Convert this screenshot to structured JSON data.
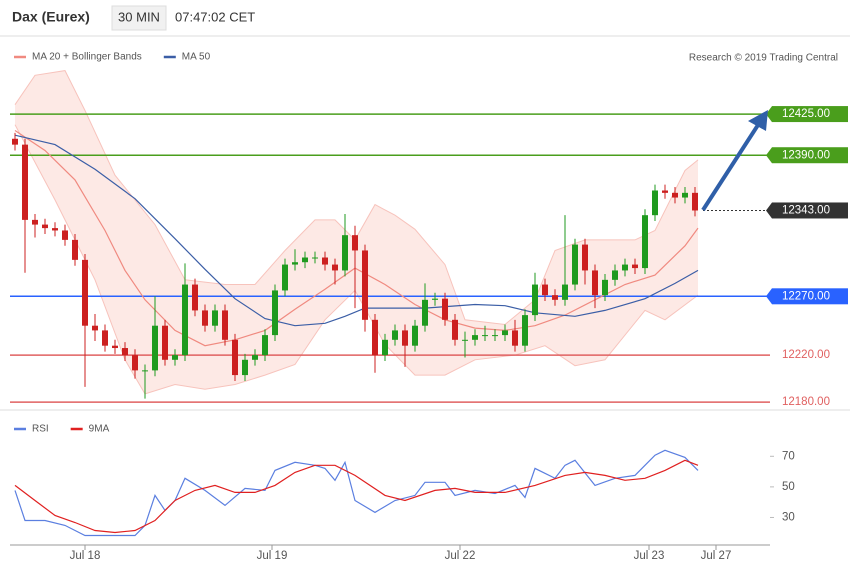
{
  "header": {
    "instrument": "Dax (Eurex)",
    "timeframe": "30 MIN",
    "time": "07:47:02 CET",
    "credit": "Research © 2019 Trading Central"
  },
  "chart_data": [
    {
      "type": "candlestick",
      "xlim": [
        -0.5,
        75.5
      ],
      "ylim": [
        12175,
        12488
      ],
      "up_color": "#1f9a1f",
      "down_color": "#cc2020",
      "open": [
        12404,
        12399,
        12335,
        12331,
        12328,
        12326,
        12318,
        12301,
        12245,
        12241,
        12228,
        12226,
        12220,
        12207,
        12207,
        12245,
        12216,
        12220,
        12280,
        12258,
        12245,
        12258,
        12233,
        12203,
        12216,
        12220,
        12237,
        12275,
        12297,
        12299,
        12303,
        12303,
        12297,
        12292,
        12322,
        12309,
        12250,
        12220,
        12233,
        12241,
        12228,
        12245,
        12267,
        12268,
        12250,
        12233,
        12233,
        12237,
        12237,
        12237,
        12241,
        12228,
        12254,
        12280,
        12271,
        12267,
        12280,
        12314,
        12292,
        12271,
        12284,
        12292,
        12297,
        12294,
        12339,
        12360,
        12358,
        12354,
        12358
      ],
      "high": [
        12409,
        12404,
        12340,
        12336,
        12333,
        12331,
        12323,
        12306,
        12255,
        12246,
        12233,
        12231,
        12225,
        12212,
        12270,
        12250,
        12225,
        12298,
        12285,
        12263,
        12263,
        12263,
        12238,
        12221,
        12225,
        12242,
        12280,
        12302,
        12310,
        12308,
        12308,
        12308,
        12302,
        12340,
        12330,
        12314,
        12255,
        12238,
        12246,
        12246,
        12250,
        12281,
        12273,
        12273,
        12255,
        12240,
        12242,
        12245,
        12242,
        12246,
        12250,
        12259,
        12290,
        12285,
        12276,
        12339,
        12319,
        12319,
        12297,
        12289,
        12297,
        12302,
        12302,
        12344,
        12365,
        12365,
        12363,
        12363,
        12363
      ],
      "low": [
        12394,
        12290,
        12320,
        12323,
        12321,
        12313,
        12296,
        12193,
        12232,
        12223,
        12221,
        12215,
        12200,
        12183,
        12202,
        12211,
        12211,
        12215,
        12253,
        12240,
        12240,
        12228,
        12198,
        12198,
        12211,
        12215,
        12232,
        12270,
        12292,
        12294,
        12298,
        12292,
        12280,
        12287,
        12260,
        12240,
        12205,
        12215,
        12228,
        12210,
        12223,
        12240,
        12262,
        12245,
        12228,
        12218,
        12228,
        12232,
        12232,
        12232,
        12223,
        12223,
        12249,
        12266,
        12262,
        12262,
        12275,
        12280,
        12260,
        12266,
        12279,
        12287,
        12289,
        12289,
        12334,
        12353,
        12349,
        12349,
        12338
      ],
      "close": [
        12399,
        12335,
        12331,
        12328,
        12326,
        12318,
        12301,
        12245,
        12241,
        12228,
        12226,
        12220,
        12207,
        12207,
        12245,
        12216,
        12220,
        12280,
        12258,
        12245,
        12258,
        12233,
        12203,
        12216,
        12220,
        12237,
        12275,
        12297,
        12299,
        12303,
        12303,
        12297,
        12292,
        12322,
        12309,
        12250,
        12220,
        12233,
        12241,
        12228,
        12245,
        12267,
        12268,
        12250,
        12233,
        12233,
        12237,
        12237,
        12237,
        12241,
        12228,
        12254,
        12280,
        12271,
        12267,
        12280,
        12314,
        12292,
        12271,
        12284,
        12292,
        12297,
        12294,
        12339,
        12360,
        12358,
        12354,
        12358,
        12343
      ],
      "bands": {
        "color": "#fde3df",
        "upper": {
          "x": [
            0,
            2,
            5,
            7,
            10,
            14,
            17,
            21,
            24,
            27,
            30,
            32,
            34,
            36,
            38,
            40,
            43,
            45,
            49,
            52,
            54,
            57,
            62,
            64,
            67,
            68.3
          ],
          "values": [
            12433,
            12458,
            12462,
            12428,
            12373,
            12331,
            12284,
            12280,
            12280,
            12309,
            12335,
            12335,
            12318,
            12348,
            12339,
            12327,
            12297,
            12250,
            12246,
            12267,
            12309,
            12318,
            12318,
            12326,
            12377,
            12386
          ]
        },
        "lower": {
          "x": [
            0,
            4,
            8,
            11,
            13,
            16,
            19,
            22,
            25,
            28,
            31,
            34,
            37,
            40,
            43,
            46,
            50,
            53,
            56,
            59,
            63,
            65,
            68.3
          ],
          "values": [
            12416,
            12352,
            12284,
            12216,
            12187,
            12195,
            12191,
            12195,
            12203,
            12212,
            12250,
            12275,
            12229,
            12203,
            12203,
            12216,
            12220,
            12228,
            12211,
            12216,
            12258,
            12250,
            12271
          ]
        }
      },
      "series": [
        {
          "name": "MA 20 + Bollinger Bands",
          "color": "#f08a80",
          "x": [
            0,
            3,
            6,
            9,
            11,
            13,
            16,
            19,
            22,
            25,
            28,
            31,
            34,
            37,
            40,
            43,
            46,
            49,
            52,
            55,
            58,
            61,
            64,
            67,
            68.3
          ],
          "values": [
            12411,
            12394,
            12369,
            12326,
            12292,
            12267,
            12241,
            12228,
            12233,
            12241,
            12259,
            12276,
            12294,
            12280,
            12263,
            12250,
            12243,
            12241,
            12245,
            12254,
            12267,
            12280,
            12288,
            12313,
            12328
          ]
        },
        {
          "name": "MA 50",
          "color": "#3b5ea6",
          "x": [
            0,
            4,
            8,
            12,
            16,
            19,
            22,
            25,
            28,
            31,
            33,
            35,
            41,
            46,
            49,
            52,
            56,
            59,
            63,
            66,
            68.3
          ],
          "values": [
            12407,
            12399,
            12378,
            12353,
            12319,
            12293,
            12268,
            12251,
            12245,
            12247,
            12253,
            12260,
            12260,
            12263,
            12262,
            12256,
            12253,
            12258,
            12268,
            12281,
            12292
          ]
        }
      ],
      "levels": [
        {
          "value": 12425,
          "label": "12425.00",
          "color": "#4a9e1c",
          "line": "solid",
          "tag": "box"
        },
        {
          "value": 12390,
          "label": "12390.00",
          "color": "#4a9e1c",
          "line": "solid",
          "tag": "box"
        },
        {
          "value": 12343,
          "label": "12343.00",
          "color": "#333333",
          "line": "dotted",
          "tag": "box"
        },
        {
          "value": 12270,
          "label": "12270.00",
          "color": "#2962ff",
          "line": "solid",
          "tag": "box"
        },
        {
          "value": 12220,
          "label": "12220.00",
          "color": "#e06060",
          "line": "solid",
          "tag": "text"
        },
        {
          "value": 12180,
          "label": "12180.00",
          "color": "#e06060",
          "line": "solid",
          "tag": "text"
        }
      ]
    },
    {
      "type": "line",
      "xlim": [
        -0.5,
        75.5
      ],
      "ylim": [
        12,
        97
      ],
      "yticks": [
        30,
        50,
        70
      ],
      "xticks": [
        {
          "value": 7,
          "label": "Jul 18"
        },
        {
          "value": 25.7,
          "label": "Jul 19"
        },
        {
          "value": 44.5,
          "label": "Jul 22"
        },
        {
          "value": 63.4,
          "label": "Jul 23"
        },
        {
          "value": 70.1,
          "label": "Jul 27"
        }
      ],
      "series": [
        {
          "name": "RSI",
          "color": "#5b7fe0",
          "x": [
            0,
            1,
            3,
            5,
            7,
            9,
            12,
            13,
            14,
            15,
            16,
            17,
            19,
            21,
            23,
            25,
            26,
            28,
            30,
            31,
            32,
            33,
            34,
            36,
            38,
            40,
            41,
            43,
            44,
            46,
            48,
            50,
            51,
            52,
            54,
            55,
            56,
            58,
            60,
            62,
            64,
            65,
            67,
            68.3
          ],
          "values": [
            47.7,
            28.0,
            28.0,
            24.8,
            18.2,
            18.2,
            18.2,
            24.8,
            44.4,
            34.6,
            41.1,
            55.6,
            47.7,
            37.9,
            49.0,
            47.7,
            60.8,
            66.1,
            64.1,
            62.1,
            54.3,
            66.1,
            41.1,
            33.3,
            41.1,
            44.4,
            53.0,
            53.0,
            44.4,
            47.7,
            45.7,
            51.0,
            43.1,
            62.1,
            55.6,
            64.1,
            67.4,
            51.0,
            55.6,
            57.5,
            70.7,
            73.9,
            69.3,
            60.8
          ]
        },
        {
          "name": "9MA",
          "color": "#e02020",
          "x": [
            0,
            2,
            4,
            6,
            8,
            10,
            12,
            14,
            16,
            18,
            20,
            22,
            24,
            26,
            28,
            30,
            32,
            34,
            37,
            39,
            42,
            44,
            46,
            49,
            52,
            55,
            57,
            59,
            61,
            63,
            65,
            67,
            68.3
          ],
          "values": [
            51.0,
            41.1,
            31.3,
            26.7,
            21.5,
            20.2,
            21.5,
            28.0,
            41.1,
            47.7,
            51.0,
            46.4,
            46.4,
            51.0,
            59.5,
            64.1,
            64.1,
            57.5,
            44.4,
            41.1,
            47.7,
            49.0,
            46.4,
            46.4,
            51.0,
            57.5,
            59.5,
            57.5,
            54.3,
            55.6,
            60.8,
            67.4,
            64.1
          ]
        }
      ]
    }
  ]
}
